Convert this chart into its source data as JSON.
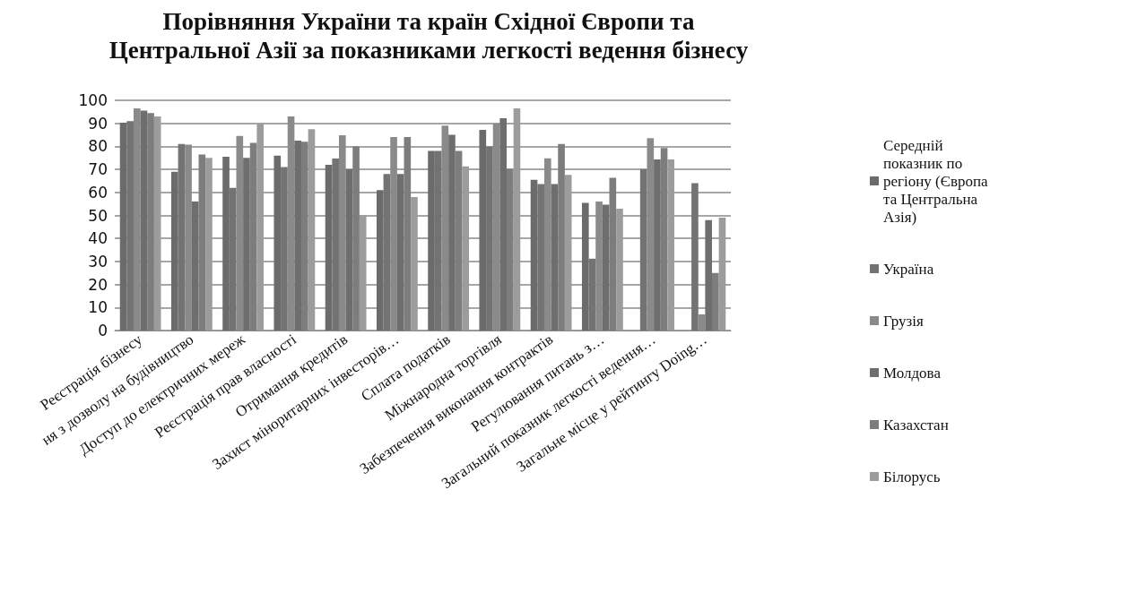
{
  "chart_data": {
    "type": "bar",
    "title": "Порівняння України та країн Східної Європи та Центральної Азії за показниками легкості ведення бізнесу",
    "categories": [
      "Реєстрація бізнесу",
      "ня з дозволу на будівництво",
      "Доступ до електричних мереж",
      "Реєстрація прав власності",
      "Отримання кредитів",
      "Захист міноритарних інвесторів…",
      "Сплата податків",
      "Міжнародна торгівля",
      "Забезпечення виконання контрактів",
      "Регулювання питань з…",
      "Загальний показник легкості ведення…",
      "Загальне місце у рейтингу Doing…"
    ],
    "series": [
      {
        "name": "Середній показник по регіону (Європа та Центральна Азія)",
        "color": "#6b6b6b",
        "values": [
          90.3,
          69,
          75.5,
          76,
          72,
          61,
          78,
          87.2,
          65.5,
          55.4,
          null,
          null
        ]
      },
      {
        "name": "Україна",
        "color": "#737373",
        "values": [
          91,
          81,
          62,
          71,
          74.7,
          68,
          78,
          80,
          63.6,
          31.2,
          70,
          64
        ]
      },
      {
        "name": "Грузія",
        "color": "#8a8a8a",
        "values": [
          96.5,
          80.7,
          84.5,
          93,
          84.8,
          84,
          89,
          90,
          74.8,
          56,
          83.6,
          7
        ]
      },
      {
        "name": "Молдова",
        "color": "#6e6e6e",
        "values": [
          95.5,
          56,
          75,
          82.5,
          70,
          68,
          85,
          92.2,
          63.6,
          54.7,
          74.3,
          48
        ]
      },
      {
        "name": "Казахстан",
        "color": "#7d7d7d",
        "values": [
          94.5,
          76.5,
          81.5,
          82,
          80,
          84,
          78,
          70.2,
          81,
          66.3,
          79.3,
          25
        ]
      },
      {
        "name": "Білорусь",
        "color": "#9c9c9c",
        "values": [
          93,
          75,
          90,
          87.5,
          50,
          58,
          71.3,
          96.5,
          67.6,
          52.9,
          74.3,
          49
        ]
      }
    ],
    "ylim": [
      0,
      100
    ],
    "yticks": [
      0,
      10,
      20,
      30,
      40,
      50,
      60,
      70,
      80,
      90,
      100
    ],
    "grid": "y",
    "legend": "right"
  }
}
